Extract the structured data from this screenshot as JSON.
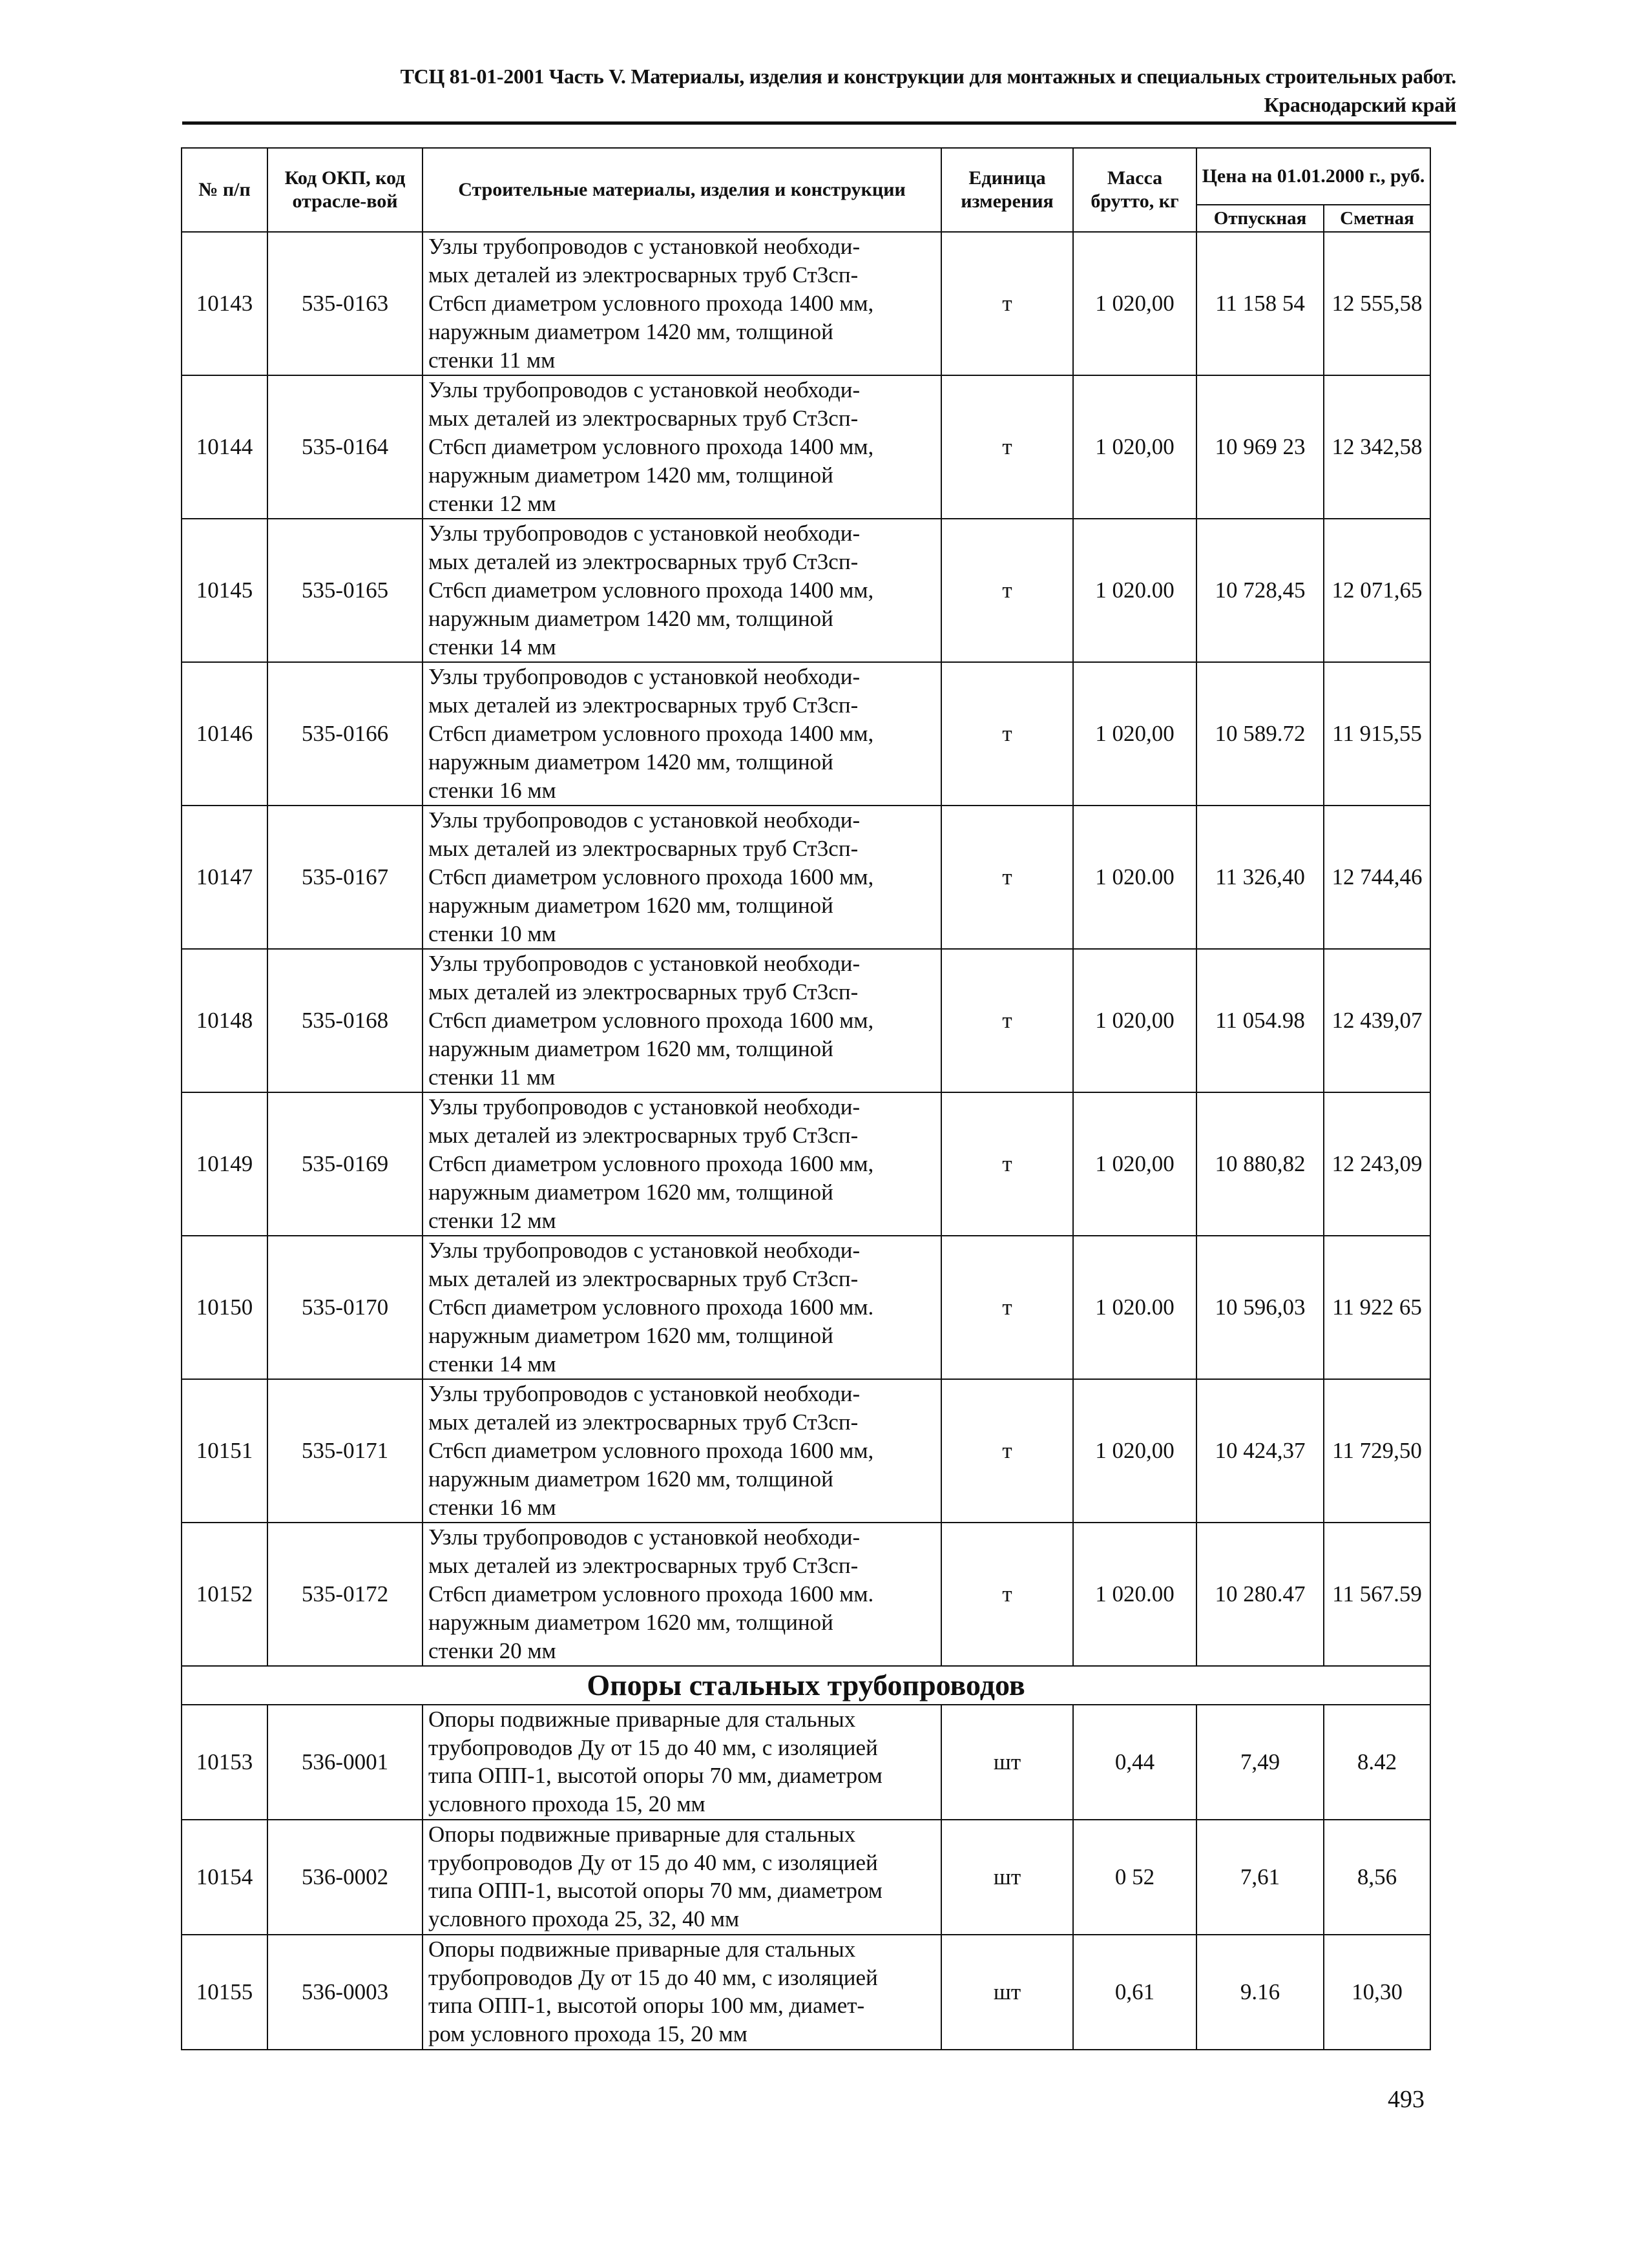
{
  "header": {
    "line1": "ТСЦ 81-01-2001 Часть V. Материалы, изделия и конструкции для монтажных и специальных строительных работ.",
    "line2": "Краснодарский край"
  },
  "table": {
    "columns": {
      "num": "№ п/п",
      "code": "Код ОКП, код отрасле-вой",
      "name": "Строительные материалы, изделия и конструкции",
      "unit": "Единица измерения",
      "mass": "Масса брутто, кг",
      "price": "Цена на 01.01.2000 г., руб.",
      "price_release": "Отпускная",
      "price_estimate": "Сметная"
    },
    "rows": [
      {
        "num": "10143",
        "code": "535-0163",
        "name": "Узлы трубопроводов с установкой необходи-\nмых деталей из электросварных труб Ст3сп-\nСт6сп диаметром условного прохода 1400 мм,\nнаружным диаметром 1420 мм, толщиной\nстенки 11 мм",
        "unit": "т",
        "mass": "1 020,00",
        "release": "11 158 54",
        "estimate": "12 555,58"
      },
      {
        "num": "10144",
        "code": "535-0164",
        "name": "Узлы трубопроводов с установкой необходи-\nмых деталей из электросварных труб Ст3сп-\nСт6сп диаметром условного прохода 1400 мм,\nнаружным диаметром 1420 мм, толщиной\nстенки 12 мм",
        "unit": "т",
        "mass": "1 020,00",
        "release": "10 969 23",
        "estimate": "12 342,58"
      },
      {
        "num": "10145",
        "code": "535-0165",
        "name": "Узлы трубопроводов с установкой необходи-\nмых деталей из электросварных труб Ст3сп-\nСт6сп диаметром условного прохода 1400 мм,\nнаружным диаметром 1420 мм, толщиной\nстенки 14 мм",
        "unit": "т",
        "mass": "1 020.00",
        "release": "10 728,45",
        "estimate": "12 071,65"
      },
      {
        "num": "10146",
        "code": "535-0166",
        "name": "Узлы трубопроводов с установкой необходи-\nмых деталей из электросварных труб Ст3сп-\nСт6сп диаметром условного прохода 1400 мм,\nнаружным диаметром 1420 мм, толщиной\nстенки 16 мм",
        "unit": "т",
        "mass": "1 020,00",
        "release": "10 589.72",
        "estimate": "11 915,55"
      },
      {
        "num": "10147",
        "code": "535-0167",
        "name": "Узлы трубопроводов с установкой необходи-\nмых деталей из электросварных труб Ст3сп-\nСт6сп диаметром условного прохода 1600 мм,\nнаружным диаметром 1620 мм, толщиной\nстенки 10 мм",
        "unit": "т",
        "mass": "1 020.00",
        "release": "11 326,40",
        "estimate": "12 744,46"
      },
      {
        "num": "10148",
        "code": "535-0168",
        "name": "Узлы трубопроводов с установкой необходи-\nмых деталей из электросварных труб Ст3сп-\nСт6сп диаметром условного прохода 1600 мм,\nнаружным диаметром 1620 мм, толщиной\nстенки 11 мм",
        "unit": "т",
        "mass": "1 020,00",
        "release": "11 054.98",
        "estimate": "12 439,07"
      },
      {
        "num": "10149",
        "code": "535-0169",
        "name": "Узлы трубопроводов с установкой необходи-\nмых деталей из электросварных труб Ст3сп-\nСт6сп диаметром условного прохода 1600 мм,\nнаружным диаметром 1620 мм, толщиной\nстенки 12 мм",
        "unit": "т",
        "mass": "1 020,00",
        "release": "10 880,82",
        "estimate": "12 243,09"
      },
      {
        "num": "10150",
        "code": "535-0170",
        "name": "Узлы трубопроводов с установкой необходи-\nмых деталей из электросварных труб Ст3сп-\nСт6сп диаметром условного прохода 1600 мм.\nнаружным диаметром 1620 мм, толщиной\nстенки 14 мм",
        "unit": "т",
        "mass": "1 020.00",
        "release": "10 596,03",
        "estimate": "11 922 65"
      },
      {
        "num": "10151",
        "code": "535-0171",
        "name": "Узлы трубопроводов с установкой необходи-\nмых деталей из электросварных труб Ст3сп-\nСт6сп диаметром условного прохода 1600 мм,\nнаружным диаметром 1620 мм, толщиной\nстенки 16 мм",
        "unit": "т",
        "mass": "1 020,00",
        "release": "10 424,37",
        "estimate": "11 729,50"
      },
      {
        "num": "10152",
        "code": "535-0172",
        "name": "Узлы трубопроводов с установкой необходи-\nмых деталей из электросварных труб Ст3сп-\nСт6сп диаметром условного прохода 1600 мм.\nнаружным диаметром 1620 мм, толщиной\nстенки 20 мм",
        "unit": "т",
        "mass": "1 020.00",
        "release": "10 280.47",
        "estimate": "11 567.59"
      }
    ],
    "section_title": "Опоры стальных трубопроводов",
    "section_rows": [
      {
        "num": "10153",
        "code": "536-0001",
        "name": "Опоры подвижные приварные для стальных\nтрубопроводов Ду от 15 до 40 мм, с изоляцией\nтипа ОПП-1, высотой опоры 70 мм, диаметром\nусловного прохода 15, 20 мм",
        "unit": "шт",
        "mass": "0,44",
        "release": "7,49",
        "estimate": "8.42"
      },
      {
        "num": "10154",
        "code": "536-0002",
        "name": "Опоры подвижные приварные для стальных\nтрубопроводов Ду от 15 до 40 мм, с изоляцией\nтипа ОПП-1, высотой опоры 70 мм, диаметром\nусловного прохода 25, 32, 40 мм",
        "unit": "шт",
        "mass": "0 52",
        "release": "7,61",
        "estimate": "8,56"
      },
      {
        "num": "10155",
        "code": "536-0003",
        "name": "Опоры подвижные приварные для стальных\nтрубопроводов Ду от 15 до 40 мм, с изоляцией\nтипа ОПП-1, высотой опоры 100 мм, диамет-\nром условного прохода 15, 20 мм",
        "unit": "шт",
        "mass": "0,61",
        "release": "9.16",
        "estimate": "10,30"
      }
    ]
  },
  "page_number": "493"
}
